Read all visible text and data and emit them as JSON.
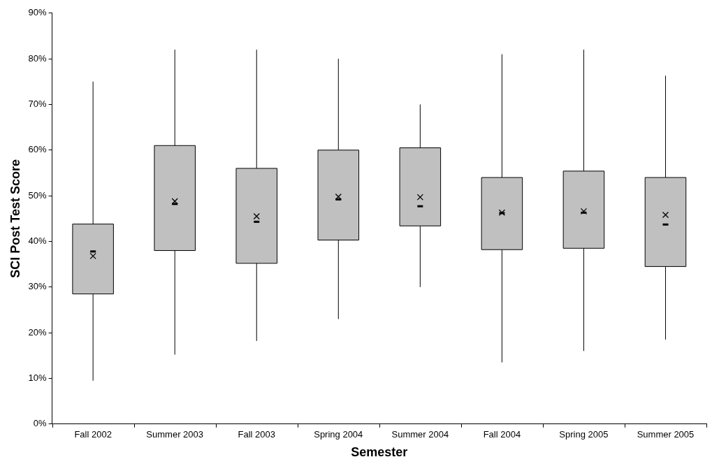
{
  "chart_data": {
    "type": "box",
    "xlabel": "Semester",
    "ylabel": "SCI Post Test Score",
    "categories": [
      "Fall 2002",
      "Summer 2003",
      "Fall 2003",
      "Spring 2004",
      "Summer 2004",
      "Fall 2004",
      "Spring 2005",
      "Summer 2005"
    ],
    "series": [
      {
        "color": "#c0c0c0",
        "boxes": [
          {
            "low": 9.5,
            "q1": 28.5,
            "median": 37.8,
            "q3": 43.8,
            "high": 75,
            "mean": 36.8
          },
          {
            "low": 15.2,
            "q1": 38,
            "median": 48.2,
            "q3": 61,
            "high": 82,
            "mean": 48.8
          },
          {
            "low": 18.2,
            "q1": 35.2,
            "median": 44.3,
            "q3": 56,
            "high": 82,
            "mean": 45.5
          },
          {
            "low": 23,
            "q1": 40.3,
            "median": 49.2,
            "q3": 60,
            "high": 80,
            "mean": 49.8
          },
          {
            "low": 30,
            "q1": 43.4,
            "median": 47.7,
            "q3": 60.5,
            "high": 70,
            "mean": 49.7
          },
          {
            "low": 13.5,
            "q1": 38.2,
            "median": 46.2,
            "q3": 54,
            "high": 81,
            "mean": 46.3
          },
          {
            "low": 16,
            "q1": 38.5,
            "median": 46.3,
            "q3": 55.4,
            "high": 82,
            "mean": 46.6
          },
          {
            "low": 18.5,
            "q1": 34.5,
            "median": 43.7,
            "q3": 54,
            "high": 76.3,
            "mean": 45.8
          }
        ]
      }
    ],
    "ylim": [
      0,
      90
    ],
    "yticks": [
      {
        "value": 0,
        "label": "0%"
      },
      {
        "value": 10,
        "label": "10%"
      },
      {
        "value": 20,
        "label": "20%"
      },
      {
        "value": 30,
        "label": "30%"
      },
      {
        "value": 40,
        "label": "40%"
      },
      {
        "value": 50,
        "label": "50%"
      },
      {
        "value": 60,
        "label": "60%"
      },
      {
        "value": 70,
        "label": "70%"
      },
      {
        "value": 80,
        "label": "80%"
      },
      {
        "value": 90,
        "label": "90%"
      }
    ],
    "grid": false,
    "legend": false
  }
}
